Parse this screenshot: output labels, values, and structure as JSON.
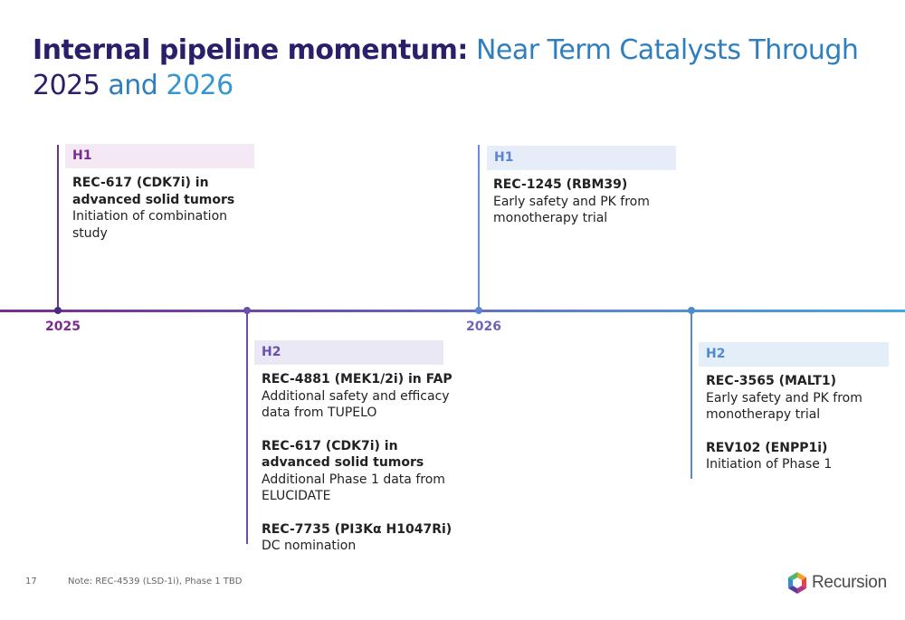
{
  "title": {
    "bold": "Internal pipeline momentum:",
    "line1_rest": " Near Term Catalysts Through",
    "line2_a": "2025",
    "line2_b": " and ",
    "line2_c": "2026"
  },
  "timeline": {
    "years": [
      "2025",
      "2026"
    ],
    "axis_gradient": [
      "#7b2b8f",
      "#46a5df"
    ]
  },
  "milestones": {
    "h1_2025": {
      "period": "H1",
      "items": [
        {
          "title": "REC-617 (CDK7i) in advanced solid tumors",
          "desc": "Initiation of combination study"
        }
      ]
    },
    "h2_2025": {
      "period": "H2",
      "items": [
        {
          "title": "REC-4881 (MEK1/2i) in FAP",
          "desc": "Additional safety and efficacy data from TUPELO"
        },
        {
          "title": "REC-617 (CDK7i) in advanced solid tumors",
          "desc": "Additional Phase 1 data from ELUCIDATE"
        },
        {
          "title": "REC-7735 (PI3Kα H1047Ri)",
          "desc": "DC nomination"
        }
      ]
    },
    "h1_2026": {
      "period": "H1",
      "items": [
        {
          "title": "REC-1245 (RBM39)",
          "desc": "Early safety and PK from monotherapy trial"
        }
      ]
    },
    "h2_2026": {
      "period": "H2",
      "items": [
        {
          "title": "REC-3565 (MALT1)",
          "desc": "Early safety and PK from monotherapy trial"
        },
        {
          "title": "REV102 (ENPP1i)",
          "desc": "Initiation of Phase 1"
        }
      ]
    }
  },
  "colors": {
    "purple": "#7b2b8f",
    "violet": "#6a4fae",
    "blue": "#5b86cf",
    "tag_bg_1": "#f3e8f3",
    "tag_bg_2": "#ebe8f5",
    "tag_bg_3": "#e6edf8",
    "tag_bg_4": "#e4eef8"
  },
  "footer": {
    "page": "17",
    "note": "Note: REC-4539 (LSD-1i), Phase 1 TBD",
    "logo_text": "Recursion",
    "logo_icon": "hexagon-logo-icon"
  }
}
